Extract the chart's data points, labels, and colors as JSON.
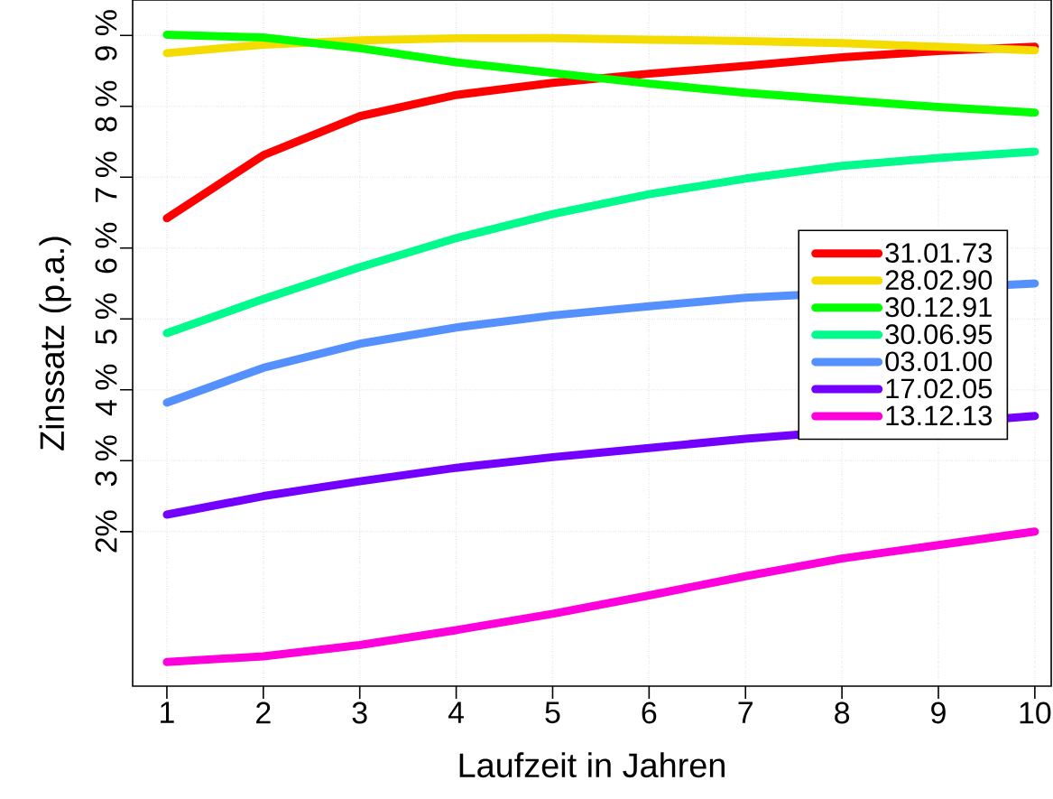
{
  "chart_data": {
    "type": "line",
    "xlabel": "Laufzeit in Jahren",
    "ylabel": "Zinssatz (p.a.)",
    "x": [
      1,
      2,
      3,
      4,
      5,
      6,
      7,
      8,
      9,
      10
    ],
    "xlim": [
      0.645,
      10.17
    ],
    "ylim": [
      -0.18,
      9.5
    ],
    "xticks": [
      1,
      2,
      3,
      4,
      5,
      6,
      7,
      8,
      9,
      10
    ],
    "yticks": [
      {
        "value": 2,
        "label": "2%"
      },
      {
        "value": 3,
        "label": "3 %"
      },
      {
        "value": 4,
        "label": "4 %"
      },
      {
        "value": 5,
        "label": "5 %"
      },
      {
        "value": 6,
        "label": "6 %"
      },
      {
        "value": 7,
        "label": "7 %"
      },
      {
        "value": 8,
        "label": "8 %"
      },
      {
        "value": 9,
        "label": "9 %"
      }
    ],
    "grid": true,
    "legend": "right",
    "line_style": "solid",
    "series": [
      {
        "name": "31.01.73",
        "color": "#ff0000",
        "values": [
          6.42,
          7.31,
          7.86,
          8.16,
          8.33,
          8.46,
          8.57,
          8.69,
          8.78,
          8.84
        ]
      },
      {
        "name": "28.02.90",
        "color": "#f5dc00",
        "values": [
          8.75,
          8.87,
          8.93,
          8.96,
          8.96,
          8.94,
          8.92,
          8.89,
          8.84,
          8.79
        ]
      },
      {
        "name": "30.12.91",
        "color": "#00ff00",
        "values": [
          9.01,
          8.97,
          8.82,
          8.62,
          8.47,
          8.32,
          8.19,
          8.09,
          7.99,
          7.91
        ]
      },
      {
        "name": "30.06.95",
        "color": "#00fa8c",
        "values": [
          4.8,
          5.28,
          5.73,
          6.14,
          6.48,
          6.76,
          6.98,
          7.16,
          7.27,
          7.36
        ]
      },
      {
        "name": "03.01.00",
        "color": "#5590ff",
        "values": [
          3.82,
          4.31,
          4.65,
          4.88,
          5.05,
          5.18,
          5.3,
          null,
          null,
          5.5
        ]
      },
      {
        "name": "17.02.05",
        "color": "#7300ff",
        "values": [
          2.24,
          2.5,
          2.71,
          2.9,
          3.05,
          3.18,
          3.31,
          null,
          null,
          3.63
        ]
      },
      {
        "name": "13.12.13",
        "color": "#ff00dd",
        "values": [
          0.16,
          0.24,
          0.4,
          0.61,
          0.84,
          1.1,
          1.37,
          1.62,
          1.81,
          2.0
        ]
      }
    ]
  }
}
